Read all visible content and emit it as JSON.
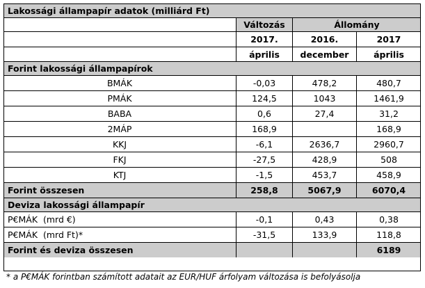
{
  "title": "Lakossági állampapír adatok (milliárd Ft)",
  "header": {
    "change_label": "Változás",
    "stock_label": "Állomány",
    "col1_year": "2017.",
    "col1_month": "április",
    "col2_year": "2016.",
    "col2_month": "december",
    "col3_year": "2017",
    "col3_month": "április"
  },
  "forint_section": {
    "title": "Forint lakossági állampapírok",
    "rows": [
      {
        "name": "BMÁK",
        "change": "-0,03",
        "dec2016": "478,2",
        "apr2017": "480,7"
      },
      {
        "name": "PMÁK",
        "change": "124,5",
        "dec2016": "1043",
        "apr2017": "1461,9"
      },
      {
        "name": "BABA",
        "change": "0,6",
        "dec2016": "27,4",
        "apr2017": "31,2"
      },
      {
        "name": "2MÁP",
        "change": "168,9",
        "dec2016": "",
        "apr2017": "168,9"
      },
      {
        "name": "KKJ",
        "change": "-6,1",
        "dec2016": "2636,7",
        "apr2017": "2960,7"
      },
      {
        "name": "FKJ",
        "change": "-27,5",
        "dec2016": "428,9",
        "apr2017": "508"
      },
      {
        "name": "KTJ",
        "change": "-1,5",
        "dec2016": "453,7",
        "apr2017": "458,9"
      }
    ],
    "total": {
      "name": "Forint összesen",
      "change": "258,8",
      "dec2016": "5067,9",
      "apr2017": "6070,4"
    }
  },
  "deviza_section": {
    "title": "Deviza lakossági állampapír",
    "rows": [
      {
        "name": "P€MÁK  (mrd €)",
        "change": "-0,1",
        "dec2016": "0,43",
        "apr2017": "0,38"
      },
      {
        "name": "P€MÁK  (mrd Ft)*",
        "change": "-31,5",
        "dec2016": "133,9",
        "apr2017": "118,8"
      }
    ]
  },
  "grand_total": {
    "name": "Forint és deviza összesen",
    "change": "",
    "dec2016": "",
    "apr2017": "6189"
  },
  "footnote": "* a P€MÁK forintban számított adatait az EUR/HUF árfolyam változása is befolyásolja",
  "colors": {
    "header_gray": "#cccccc",
    "border": "#000000"
  }
}
